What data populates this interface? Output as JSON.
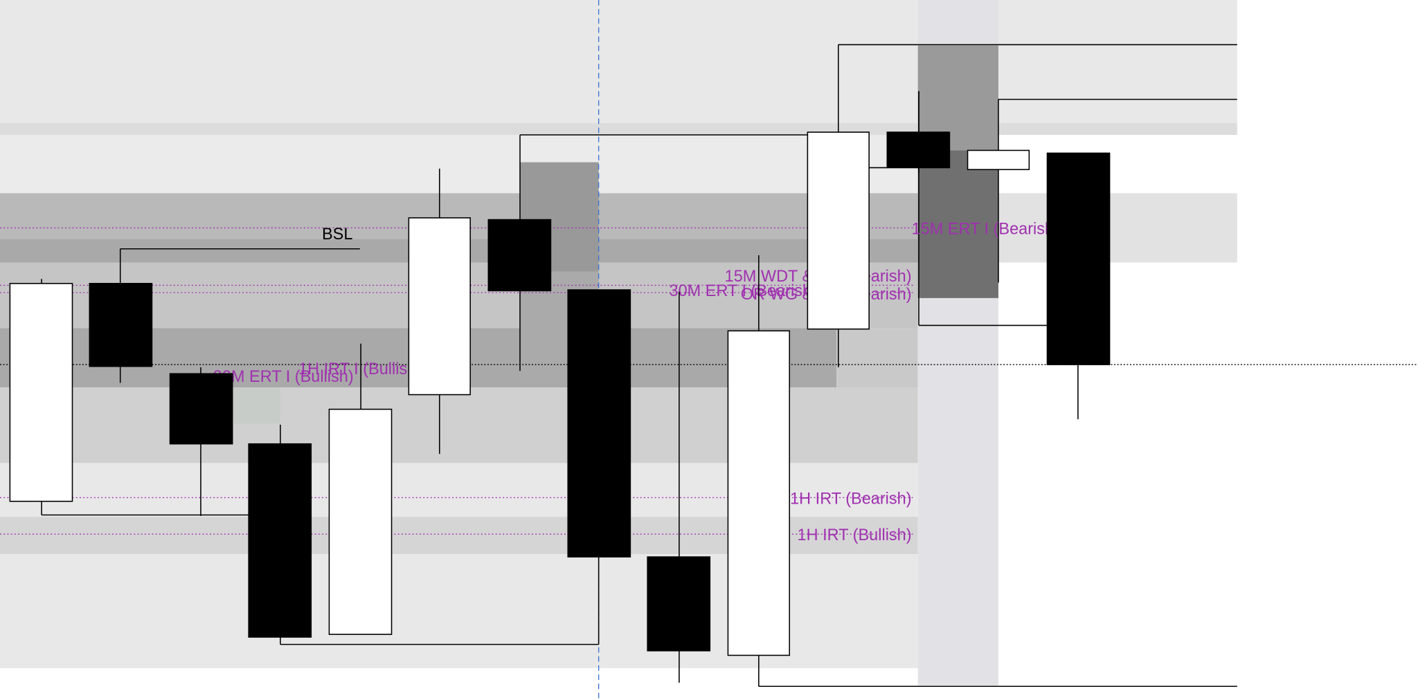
{
  "annotations": [
    "BSL",
    "15M ERT I (Bearish)",
    "15M WDT & EQ (Bearish)",
    "30M ERT I (Bearish)",
    "OR WG & EQ (Bearish)",
    "1H IRT (Bearish)",
    "1H IRT (Bullish)",
    "30M ERT I (Bullish)",
    "1H IRT I (Bullish)"
  ]
}
